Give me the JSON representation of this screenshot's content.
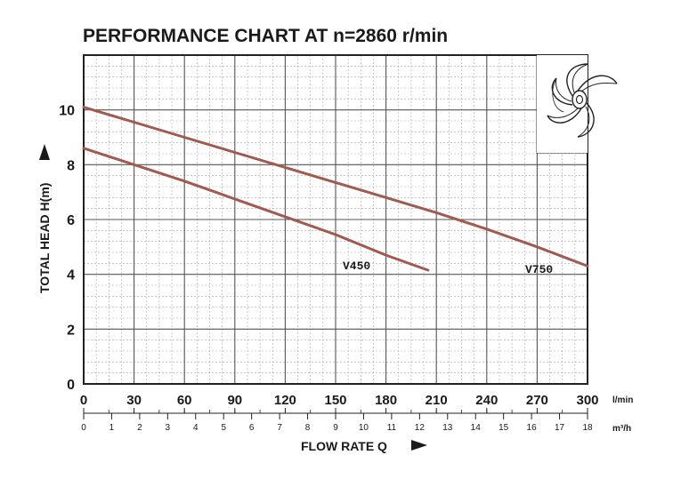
{
  "chart_data": {
    "type": "line",
    "title": "PERFORMANCE CHART AT n=2860 r/min",
    "ylabel": "TOTAL HEAD H(m)",
    "xlabel": "FLOW RATE Q",
    "x_unit": "l/min",
    "x2_unit": "m³/h",
    "xlim": [
      0,
      300
    ],
    "ylim": [
      0,
      12
    ],
    "x_ticks": [
      "0",
      "30",
      "60",
      "90",
      "120",
      "150",
      "180",
      "210",
      "240",
      "270",
      "300"
    ],
    "x2_ticks": [
      "0",
      "1",
      "2",
      "3",
      "4",
      "5",
      "6",
      "7",
      "8",
      "9",
      "10",
      "11",
      "12",
      "13",
      "14",
      "15",
      "16",
      "17",
      "18"
    ],
    "y_ticks": [
      "0",
      "2",
      "4",
      "6",
      "8",
      "10"
    ],
    "grid": true,
    "series": [
      {
        "name": "V450",
        "color": "#a05a52",
        "x": [
          0,
          30,
          60,
          90,
          120,
          150,
          180,
          205
        ],
        "y": [
          8.6,
          8.0,
          7.4,
          6.75,
          6.1,
          5.45,
          4.7,
          4.15
        ]
      },
      {
        "name": "V750",
        "color": "#a05a52",
        "x": [
          0,
          30,
          60,
          90,
          120,
          150,
          180,
          210,
          240,
          270,
          300
        ],
        "y": [
          10.1,
          9.55,
          9.0,
          8.45,
          7.9,
          7.35,
          6.8,
          6.25,
          5.65,
          5.0,
          4.3
        ]
      }
    ]
  }
}
